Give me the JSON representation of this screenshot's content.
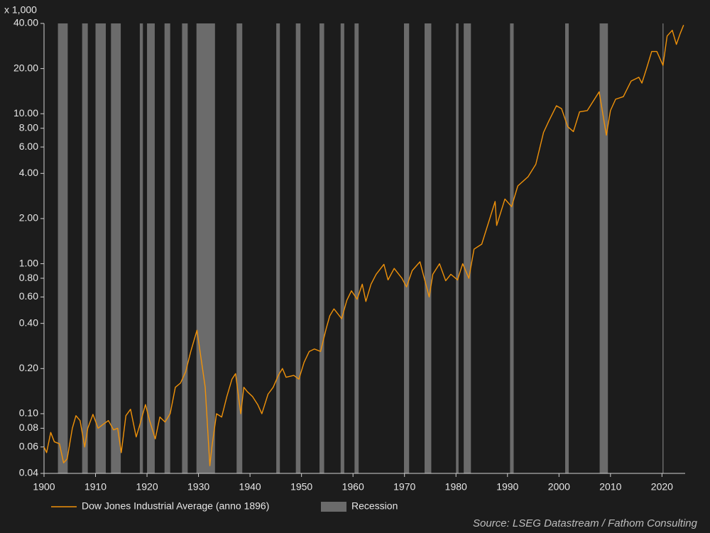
{
  "chart_data": {
    "type": "line",
    "yscale": "log",
    "y_unit_label": "x 1,000",
    "xlim": [
      1900,
      2024.5
    ],
    "ylim": [
      0.04,
      40
    ],
    "xticks": [
      1900,
      1910,
      1920,
      1930,
      1940,
      1950,
      1960,
      1970,
      1980,
      1990,
      2000,
      2010,
      2020
    ],
    "yticks": [
      {
        "value": 40,
        "label": "40.00"
      },
      {
        "value": 20,
        "label": "20.00"
      },
      {
        "value": 10,
        "label": "10.00"
      },
      {
        "value": 8,
        "label": "8.00"
      },
      {
        "value": 6,
        "label": "6.00"
      },
      {
        "value": 4,
        "label": "4.00"
      },
      {
        "value": 2,
        "label": "2.00"
      },
      {
        "value": 1,
        "label": "1.00"
      },
      {
        "value": 0.8,
        "label": "0.80"
      },
      {
        "value": 0.6,
        "label": "0.60"
      },
      {
        "value": 0.4,
        "label": "0.40"
      },
      {
        "value": 0.2,
        "label": "0.20"
      },
      {
        "value": 0.1,
        "label": "0.10"
      },
      {
        "value": 0.08,
        "label": "0.08"
      },
      {
        "value": 0.06,
        "label": "0.06"
      },
      {
        "value": 0.04,
        "label": "0.04"
      }
    ],
    "recession_name": "Recession",
    "recession_color": "#6b6b6b",
    "recessions": [
      [
        1902.7,
        1904.6
      ],
      [
        1907.4,
        1908.5
      ],
      [
        1910.0,
        1912.0
      ],
      [
        1913.0,
        1914.9
      ],
      [
        1918.6,
        1919.2
      ],
      [
        1920.0,
        1921.5
      ],
      [
        1923.4,
        1924.5
      ],
      [
        1926.8,
        1927.9
      ],
      [
        1929.6,
        1933.2
      ],
      [
        1937.4,
        1938.5
      ],
      [
        1945.1,
        1945.8
      ],
      [
        1948.9,
        1949.8
      ],
      [
        1953.5,
        1954.4
      ],
      [
        1957.6,
        1958.3
      ],
      [
        1960.3,
        1961.1
      ],
      [
        1969.9,
        1970.9
      ],
      [
        1973.9,
        1975.2
      ],
      [
        1980.0,
        1980.5
      ],
      [
        1981.5,
        1982.9
      ],
      [
        1990.5,
        1991.2
      ],
      [
        2001.2,
        2001.9
      ],
      [
        2007.9,
        2009.5
      ],
      [
        2020.1,
        2020.3
      ]
    ],
    "x": [
      1900,
      1900.5,
      1901.3,
      1902,
      1903,
      1903.8,
      1904.5,
      1905.5,
      1906.2,
      1907,
      1907.9,
      1908.5,
      1909.5,
      1910.5,
      1911.5,
      1912.5,
      1913.5,
      1914.3,
      1915,
      1915.9,
      1916.8,
      1917.9,
      1918.5,
      1919.7,
      1920.5,
      1921.6,
      1922.5,
      1923.5,
      1924.5,
      1925.5,
      1926.5,
      1927.5,
      1928.5,
      1929.7,
      1930.3,
      1931.3,
      1932.2,
      1932.6,
      1933.5,
      1934.5,
      1935.5,
      1936.5,
      1937.2,
      1938.2,
      1938.8,
      1939.5,
      1940.5,
      1941.5,
      1942.3,
      1943.5,
      1944.5,
      1945.5,
      1946.3,
      1947,
      1948.5,
      1949.5,
      1950.5,
      1951.5,
      1952.5,
      1953.7,
      1954.8,
      1955.5,
      1956.3,
      1957.8,
      1958.8,
      1959.7,
      1960.8,
      1961.8,
      1962.5,
      1963.5,
      1964.5,
      1966,
      1966.8,
      1968,
      1969.5,
      1970.4,
      1971.5,
      1973,
      1974.8,
      1975.5,
      1976.8,
      1978,
      1979,
      1980.3,
      1981.3,
      1982.5,
      1983.5,
      1985,
      1987.6,
      1987.9,
      1989.5,
      1990.8,
      1992,
      1994,
      1995.5,
      1997,
      1998,
      1999.5,
      2000.5,
      2001.7,
      2002.8,
      2004,
      2005.5,
      2007.8,
      2009.2,
      2010,
      2011,
      2012.5,
      2014,
      2015.5,
      2016.1,
      2017,
      2018,
      2019,
      2020.2,
      2021,
      2022,
      2022.8,
      2023.5,
      2024.2
    ],
    "series": [
      {
        "name": "Dow Jones Industrial Average (anno 1896)",
        "color": "#f0920a",
        "values": [
          0.06,
          0.055,
          0.075,
          0.065,
          0.063,
          0.047,
          0.05,
          0.08,
          0.097,
          0.09,
          0.06,
          0.08,
          0.099,
          0.08,
          0.085,
          0.09,
          0.078,
          0.08,
          0.055,
          0.097,
          0.107,
          0.07,
          0.082,
          0.115,
          0.09,
          0.068,
          0.095,
          0.088,
          0.1,
          0.15,
          0.16,
          0.19,
          0.26,
          0.36,
          0.26,
          0.15,
          0.045,
          0.06,
          0.1,
          0.095,
          0.13,
          0.17,
          0.185,
          0.1,
          0.15,
          0.14,
          0.13,
          0.115,
          0.1,
          0.135,
          0.15,
          0.18,
          0.2,
          0.175,
          0.18,
          0.17,
          0.22,
          0.26,
          0.27,
          0.26,
          0.37,
          0.45,
          0.5,
          0.43,
          0.57,
          0.66,
          0.58,
          0.73,
          0.56,
          0.73,
          0.85,
          0.99,
          0.78,
          0.93,
          0.8,
          0.7,
          0.9,
          1.03,
          0.6,
          0.85,
          1.0,
          0.77,
          0.85,
          0.78,
          1.0,
          0.8,
          1.25,
          1.35,
          2.6,
          1.8,
          2.7,
          2.4,
          3.3,
          3.8,
          4.6,
          7.5,
          8.9,
          11.3,
          10.8,
          8.2,
          7.6,
          10.3,
          10.5,
          14.0,
          7.2,
          10.5,
          12.5,
          13,
          16.5,
          17.5,
          16,
          20,
          26,
          26,
          21,
          33,
          36,
          29,
          34,
          39
        ]
      }
    ],
    "source": "Source: LSEG Datastream / Fathom Consulting"
  }
}
